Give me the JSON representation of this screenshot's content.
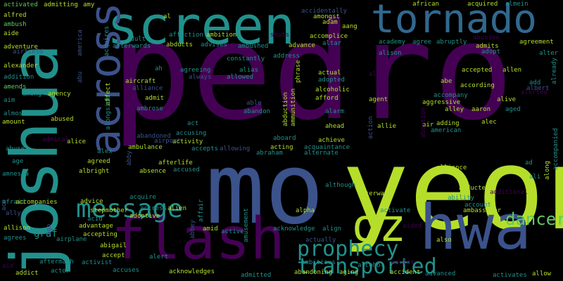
{
  "colors": {
    "background": "#000000",
    "purple": "#440154",
    "indigo": "#3b528b",
    "teal": "#21918c",
    "green": "#5ec962",
    "lime": "#b5de2b"
  },
  "words": {
    "pedro": "pedro",
    "yeon": "yeon",
    "mo": "mo",
    "joshua": "joshua",
    "hwa": "hwa",
    "flash": "flash",
    "screen": "screen",
    "tornado": "tornado",
    "oz": "oz",
    "prophecy": "prophecy",
    "message": "message",
    "transported": "transported",
    "across": "across",
    "dancer": "dancer",
    "activated": "activated",
    "admitting": "admitting",
    "amy": "amy",
    "alfred": "alfred",
    "ambush": "ambush",
    "aide": "aide",
    "adventure": "adventure",
    "airfield": "airfield",
    "alexander": "alexander",
    "addition": "addition",
    "amends": "amends",
    "aim": "aim",
    "almost": "almost",
    "amount": "amount",
    "abuse": "abuse",
    "age": "age",
    "amnesia": "amnesia",
    "ace": "ace",
    "afraid": "afraid",
    "ally": "ally",
    "allison": "allison",
    "agrees": "agrees",
    "aid": "aid",
    "addict": "addict",
    "actor": "actor",
    "aftermath": "aftermath",
    "airplane": "airplane",
    "graf": "graf",
    "accompanies": "accompanies",
    "among": "among",
    "agency": "agency",
    "abused": "abused",
    "alice": "alice",
    "admiral": "admiral",
    "al": "al",
    "affection": "affection",
    "ambition": "ambition",
    "shuts": "shuts",
    "adult": "adult",
    "afterwards": "afterwards",
    "abducts": "abducts",
    "advises": "advises",
    "ambushed": "ambushed",
    "constantly": "constantly",
    "agreeing": "agreeing",
    "always": "always",
    "address": "address",
    "ah": "ah",
    "aircraft": "aircraft",
    "alliance_faded": "alliance",
    "admit": "admit",
    "ambrose": "ambrose",
    "act": "act",
    "accusing": "accusing",
    "activity": "activity",
    "ambulance": "ambulance",
    "airport": "airport",
    "accepts": "accepts",
    "allowing": "allowing",
    "afterlife": "afterlife",
    "absence": "absence",
    "accused": "accused",
    "abandoned": "abandoned",
    "alex": "alex",
    "agreed": "agreed",
    "albright": "albright",
    "advice": "advice",
    "stepmother": "stepmother",
    "acquire": "acquire",
    "acid": "acid",
    "advantage": "advantage",
    "accepting": "accepting",
    "abigail": "abigail",
    "accept": "accept",
    "activist": "activist",
    "accuses": "accuses",
    "alert": "alert",
    "acknowledges": "acknowledges",
    "adoptive": "adoptive",
    "actress": "actress",
    "alien": "alien",
    "affair": "affair",
    "abbey": "abbey",
    "amid": "amid",
    "active": "active",
    "amusement": "amusement",
    "admitted": "admitted",
    "accidentally": "accidentally",
    "amongst": "amongst",
    "adam": "adam",
    "aang": "aang",
    "accomplice": "accomplice",
    "altar": "altar",
    "advance": "advance",
    "phrase": "phrase",
    "alias": "alias",
    "allowed": "allowed",
    "able": "able",
    "abandon": "abandon",
    "actual": "actual",
    "adopted": "adopted",
    "alcoholic": "alcoholic",
    "afford": "afford",
    "alarm": "alarm",
    "ahead": "ahead",
    "achieve": "achieve",
    "acting": "acting",
    "aboard": "aboard",
    "acquaintance": "acquaintance",
    "abraham": "abraham",
    "alternate": "alternate",
    "abduction": "abduction",
    "ammunition": "ammunition",
    "agent": "agent",
    "allie": "allie",
    "action": "action",
    "alpha": "alpha",
    "although": "although",
    "afterward": "afterward",
    "activate": "activate",
    "acknowledge": "acknowledge",
    "align": "align",
    "actually": "actually",
    "ambitious": "ambitious",
    "abandoning": "abandoning",
    "aging": "aging",
    "alcohol": "alcohol",
    "accident": "accident",
    "amulet": "amulet",
    "african": "african",
    "acquired": "acquired",
    "almein": "almein",
    "academy": "academy",
    "agree": "agree",
    "abruptly": "abruptly",
    "abusive": "abusive",
    "agreement": "agreement",
    "alison": "alison",
    "alan": "alan",
    "adopt": "adopt",
    "admits": "admits",
    "alter": "alter",
    "accepted": "accepted",
    "allen": "allen",
    "abe": "abe",
    "according": "according",
    "add": "add",
    "albert": "albert",
    "alerted": "alerted",
    "accompany": "accompany",
    "aggressive": "aggressive",
    "alive": "alive",
    "alley": "alley",
    "aaron": "aaron",
    "aged": "aged",
    "air": "air",
    "adding": "adding",
    "alec": "alec",
    "american": "american",
    "already": "already",
    "accompanied": "accompanied",
    "along": "along",
    "ad": "ad",
    "ali": "ali",
    "alliance": "alliance",
    "abducted": "abducted",
    "additional": "additional",
    "ability": "ability",
    "account": "account",
    "ambassador": "ambassador",
    "aided": "aided",
    "abortion": "abortion",
    "also": "also",
    "advanced": "advanced",
    "activates": "activates",
    "allow": "allow",
    "abu": "abu",
    "affect": "affect",
    "alongside": "alongside",
    "america": "america",
    "acquires": "acquires",
    "ago": "ago",
    "abby": "abby"
  }
}
